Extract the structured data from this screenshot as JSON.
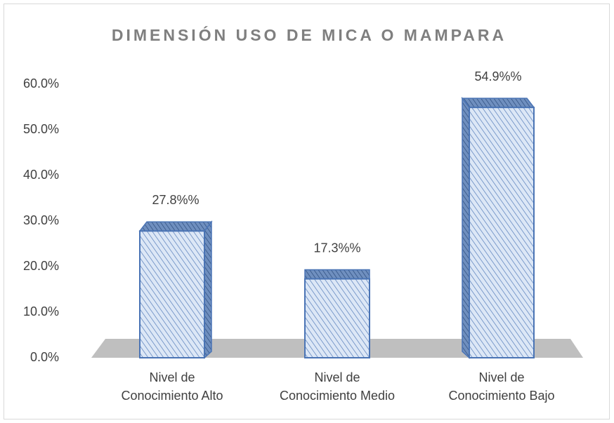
{
  "chart_data": {
    "type": "bar3d",
    "title": "DIMENSIÓN USO DE MICA O MAMPARA",
    "categories": [
      "Nivel de\nConocimiento Alto",
      "Nivel de\nConocimiento Medio",
      "Nivel de\nConocimiento Bajo"
    ],
    "values": [
      27.8,
      17.3,
      54.9
    ],
    "value_labels": [
      "27.8%%",
      "17.3%%",
      "54.9%%"
    ],
    "color": "#4a74b5",
    "ylim": [
      0,
      60
    ],
    "yticks": [
      {
        "value": 0,
        "label": "0.0%"
      },
      {
        "value": 10,
        "label": "10.0%"
      },
      {
        "value": 20,
        "label": "20.0%"
      },
      {
        "value": 30,
        "label": "30.0%"
      },
      {
        "value": 40,
        "label": "40.0%"
      },
      {
        "value": 50,
        "label": "50.0%"
      },
      {
        "value": 60,
        "label": "60.0%"
      }
    ]
  }
}
